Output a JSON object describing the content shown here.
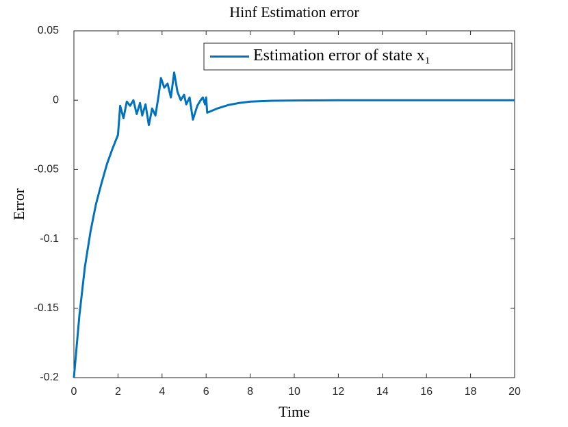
{
  "chart_data": {
    "type": "line",
    "title": "Hinf Estimation error",
    "x_label": "Time",
    "y_label": "Error",
    "xlim": [
      0,
      20
    ],
    "xticks": [
      0,
      2,
      4,
      6,
      8,
      10,
      12,
      14,
      16,
      18,
      20
    ],
    "ylim": [
      -0.2,
      0.05
    ],
    "yticks": [
      -0.2,
      -0.15,
      -0.1,
      -0.05,
      0,
      0.05
    ],
    "legend_position": "upper right",
    "series": [
      {
        "name": "Estimation error of state x₁",
        "color": "#0072bd",
        "x": [
          0,
          0.25,
          0.5,
          0.75,
          1.0,
          1.25,
          1.5,
          1.75,
          2.0,
          2.1,
          2.25,
          2.4,
          2.55,
          2.7,
          2.85,
          3.0,
          3.1,
          3.25,
          3.4,
          3.55,
          3.7,
          3.85,
          3.95,
          4.1,
          4.25,
          4.4,
          4.55,
          4.7,
          4.85,
          5.0,
          5.1,
          5.25,
          5.4,
          5.6,
          5.75,
          5.85,
          5.95,
          6.0,
          6.05,
          6.5,
          7.0,
          7.5,
          8.0,
          9.0,
          10,
          12,
          20
        ],
        "values": [
          -0.2,
          -0.155,
          -0.12,
          -0.095,
          -0.075,
          -0.06,
          -0.046,
          -0.035,
          -0.025,
          -0.004,
          -0.013,
          -0.001,
          -0.004,
          0.0,
          -0.01,
          -0.002,
          -0.011,
          -0.003,
          -0.018,
          -0.006,
          -0.011,
          0.004,
          0.016,
          0.009,
          0.012,
          0.002,
          0.02,
          0.006,
          0.0,
          0.004,
          -0.003,
          0.002,
          -0.014,
          -0.004,
          0.0,
          0.002,
          -0.003,
          0.002,
          -0.009,
          -0.006,
          -0.0035,
          -0.002,
          -0.001,
          -0.0004,
          -0.0002,
          0,
          0
        ]
      }
    ]
  }
}
